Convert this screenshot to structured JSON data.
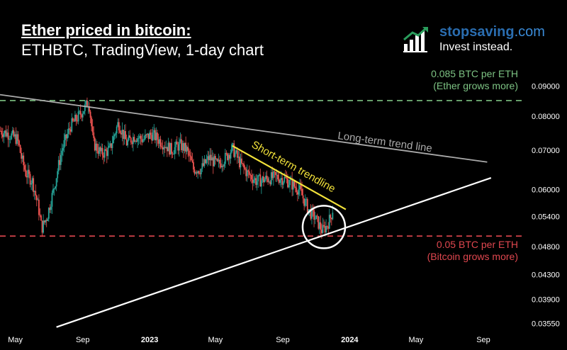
{
  "header": {
    "title": "Ether priced in bitcoin:",
    "subtitle": "ETHBTC, TradingView, 1-day chart"
  },
  "brand": {
    "name_main": "stopsaving",
    "name_suffix": ".com",
    "tagline": "Invest instead.",
    "icon": "bar-chart-growth-icon",
    "color": "#2a6db0"
  },
  "chart_data": {
    "type": "candlestick",
    "pair": "ETHBTC",
    "interval": "1-day",
    "y_ticks": [
      "0.09000",
      "0.08000",
      "0.07000",
      "0.06000",
      "0.05400",
      "0.04800",
      "0.04300",
      "0.03900",
      "0.03550"
    ],
    "y_scale": "log",
    "ylim": [
      0.0342,
      0.0955
    ],
    "x_ticks": [
      "May",
      "Sep",
      "2023",
      "May",
      "Sep",
      "2024",
      "May",
      "Sep"
    ],
    "x_range": [
      "2022-04-03",
      "2024-11-15"
    ],
    "series": [
      {
        "values": [
          {
            "date": "2022-04-04",
            "close": 0.0755
          },
          {
            "date": "2022-04-20",
            "close": 0.0745
          },
          {
            "date": "2022-05-05",
            "close": 0.073
          },
          {
            "date": "2022-05-12",
            "close": 0.068
          },
          {
            "date": "2022-05-20",
            "close": 0.064
          },
          {
            "date": "2022-06-01",
            "close": 0.062
          },
          {
            "date": "2022-06-12",
            "close": 0.056
          },
          {
            "date": "2022-06-18",
            "close": 0.0515
          },
          {
            "date": "2022-06-28",
            "close": 0.054
          },
          {
            "date": "2022-07-10",
            "close": 0.06
          },
          {
            "date": "2022-07-25",
            "close": 0.07
          },
          {
            "date": "2022-08-10",
            "close": 0.077
          },
          {
            "date": "2022-08-25",
            "close": 0.08
          },
          {
            "date": "2022-09-06",
            "close": 0.083
          },
          {
            "date": "2022-09-12",
            "close": 0.085
          },
          {
            "date": "2022-09-20",
            "close": 0.072
          },
          {
            "date": "2022-10-05",
            "close": 0.069
          },
          {
            "date": "2022-10-20",
            "close": 0.07
          },
          {
            "date": "2022-11-05",
            "close": 0.078
          },
          {
            "date": "2022-11-20",
            "close": 0.072
          },
          {
            "date": "2022-12-05",
            "close": 0.074
          },
          {
            "date": "2022-12-20",
            "close": 0.073
          },
          {
            "date": "2023-01-05",
            "close": 0.0745
          },
          {
            "date": "2023-01-25",
            "close": 0.072
          },
          {
            "date": "2023-02-10",
            "close": 0.07
          },
          {
            "date": "2023-02-25",
            "close": 0.0715
          },
          {
            "date": "2023-03-10",
            "close": 0.07
          },
          {
            "date": "2023-03-22",
            "close": 0.065
          },
          {
            "date": "2023-04-05",
            "close": 0.065
          },
          {
            "date": "2023-04-20",
            "close": 0.068
          },
          {
            "date": "2023-05-05",
            "close": 0.066
          },
          {
            "date": "2023-05-20",
            "close": 0.068
          },
          {
            "date": "2023-06-01",
            "close": 0.0705
          },
          {
            "date": "2023-06-15",
            "close": 0.0665
          },
          {
            "date": "2023-06-28",
            "close": 0.064
          },
          {
            "date": "2023-07-15",
            "close": 0.062
          },
          {
            "date": "2023-08-01",
            "close": 0.0625
          },
          {
            "date": "2023-08-20",
            "close": 0.063
          },
          {
            "date": "2023-09-05",
            "close": 0.0625
          },
          {
            "date": "2023-09-20",
            "close": 0.061
          },
          {
            "date": "2023-10-01",
            "close": 0.06
          },
          {
            "date": "2023-10-10",
            "close": 0.0575
          },
          {
            "date": "2023-10-20",
            "close": 0.055
          },
          {
            "date": "2023-10-28",
            "close": 0.054
          },
          {
            "date": "2023-11-05",
            "close": 0.0525
          },
          {
            "date": "2023-11-12",
            "close": 0.051
          },
          {
            "date": "2023-11-20",
            "close": 0.052
          },
          {
            "date": "2023-11-28",
            "close": 0.054
          },
          {
            "date": "2023-12-02",
            "close": 0.056
          }
        ]
      }
    ],
    "reference_lines": [
      {
        "value": 0.085,
        "style": "dashed",
        "color": "#7dc383",
        "label_line1": "0.085 BTC per ETH",
        "label_line2": "(Ether grows more)"
      },
      {
        "value": 0.05,
        "style": "dashed",
        "color": "#e0474f",
        "label_line1": "0.05 BTC per ETH",
        "label_line2": "(Bitcoin grows more)"
      }
    ],
    "trend_lines": [
      {
        "label": "Long-term trend line",
        "color": "#aaaaaa",
        "from": {
          "date": "2022-04-03",
          "value": 0.087
        },
        "to": {
          "date": "2024-09-08",
          "value": 0.0668
        }
      },
      {
        "label": "Short-term trendline",
        "color": "#f2e23a",
        "from": {
          "date": "2023-06-01",
          "value": 0.0712
        },
        "to": {
          "date": "2023-12-25",
          "value": 0.0555
        }
      },
      {
        "label": "",
        "color": "#ffffff",
        "from": {
          "date": "2022-07-15",
          "value": 0.035
        },
        "to": {
          "date": "2024-09-15",
          "value": 0.0628
        }
      }
    ],
    "highlight": {
      "shape": "circle",
      "center": {
        "date": "2023-11-15",
        "value": 0.0518
      },
      "color": "#ffffff"
    },
    "colors": {
      "up": "#26a69a",
      "down": "#ef5350",
      "background": "#000000",
      "axis_text": "#ffffff"
    }
  }
}
